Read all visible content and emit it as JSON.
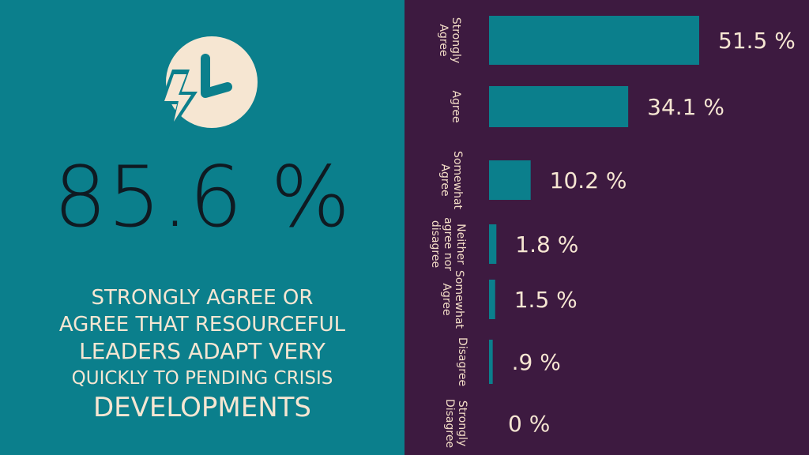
{
  "headline_stat": "85.6 %",
  "headline_lines": [
    "Strongly agree or",
    "agree that resourceful",
    "leaders adapt very",
    "quickly to pending crisis",
    "developments"
  ],
  "icon": "lightning-clock-icon",
  "colors": {
    "left_bg": "#0b7f8c",
    "right_bg": "#3d1a40",
    "bar": "#0b7f8c",
    "text_light": "#f6e6d2",
    "text_dark": "#0f1a22"
  },
  "chart_data": {
    "type": "bar",
    "orientation": "horizontal",
    "categories": [
      "Strongly Agree",
      "Agree",
      "Somewhat Agree",
      "Neither agree nor disagree",
      "Somewhat Agree",
      "Disagree",
      "Strongly Disagree"
    ],
    "category_label_lines": [
      [
        "Strongly",
        "Agree"
      ],
      [
        "Agree"
      ],
      [
        "Somewhat",
        "Agree"
      ],
      [
        "Neither",
        "agree nor",
        "disagree"
      ],
      [
        "Somewhat",
        "Agree"
      ],
      [
        "Disagree"
      ],
      [
        "Strongly",
        "Disagree"
      ]
    ],
    "values": [
      51.5,
      34.1,
      10.2,
      1.8,
      1.5,
      0.9,
      0
    ],
    "value_labels": [
      "51.5 %",
      "34.1 %",
      "10.2 %",
      "1.8 %",
      "1.5 %",
      ".9 %",
      "0 %"
    ],
    "unit": "%",
    "xlim": [
      0,
      51.5
    ],
    "grid": false,
    "legend": "none"
  }
}
